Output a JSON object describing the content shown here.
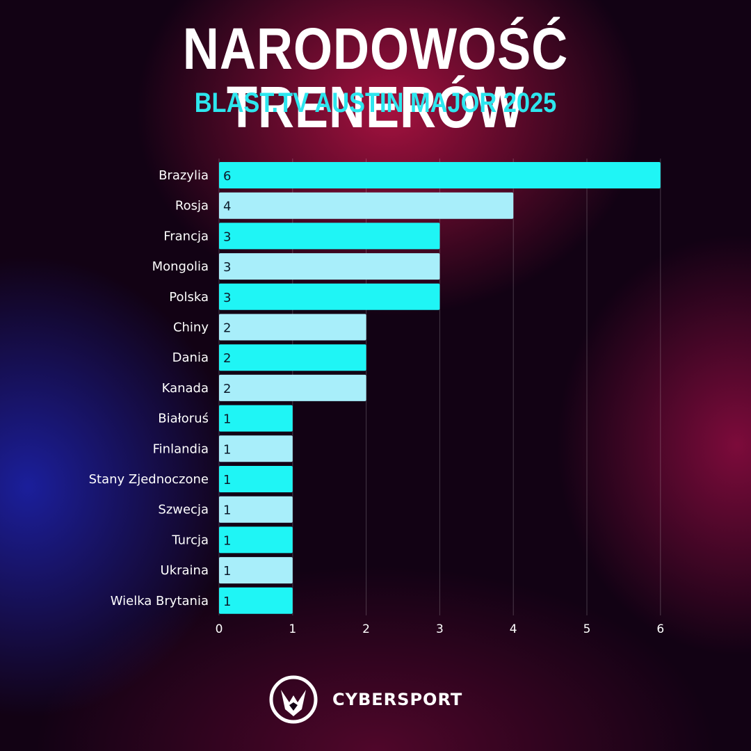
{
  "header": {
    "title": "NARODOWOŚĆ TRENERÓW",
    "subtitle": "BLAST.TV AUSTIN MAJOR 2025"
  },
  "chart_data": {
    "type": "bar",
    "orientation": "horizontal",
    "categories": [
      "Brazylia",
      "Rosja",
      "Francja",
      "Mongolia",
      "Polska",
      "Chiny",
      "Dania",
      "Kanada",
      "Białoruś",
      "Finlandia",
      "Stany Zjednoczone",
      "Szwecja",
      "Turcja",
      "Ukraina",
      "Wielka Brytania"
    ],
    "values": [
      6,
      4,
      3,
      3,
      3,
      2,
      2,
      2,
      1,
      1,
      1,
      1,
      1,
      1,
      1
    ],
    "xlim": [
      0,
      6
    ],
    "x_ticks": [
      "0",
      "1",
      "2",
      "3",
      "4",
      "5",
      "6"
    ],
    "vertical_gridlines": true,
    "data_labels": true,
    "bar_colors": [
      "#1ff5f5",
      "#a8eefa"
    ]
  },
  "footer": {
    "brand": "CYBERSPORT"
  }
}
